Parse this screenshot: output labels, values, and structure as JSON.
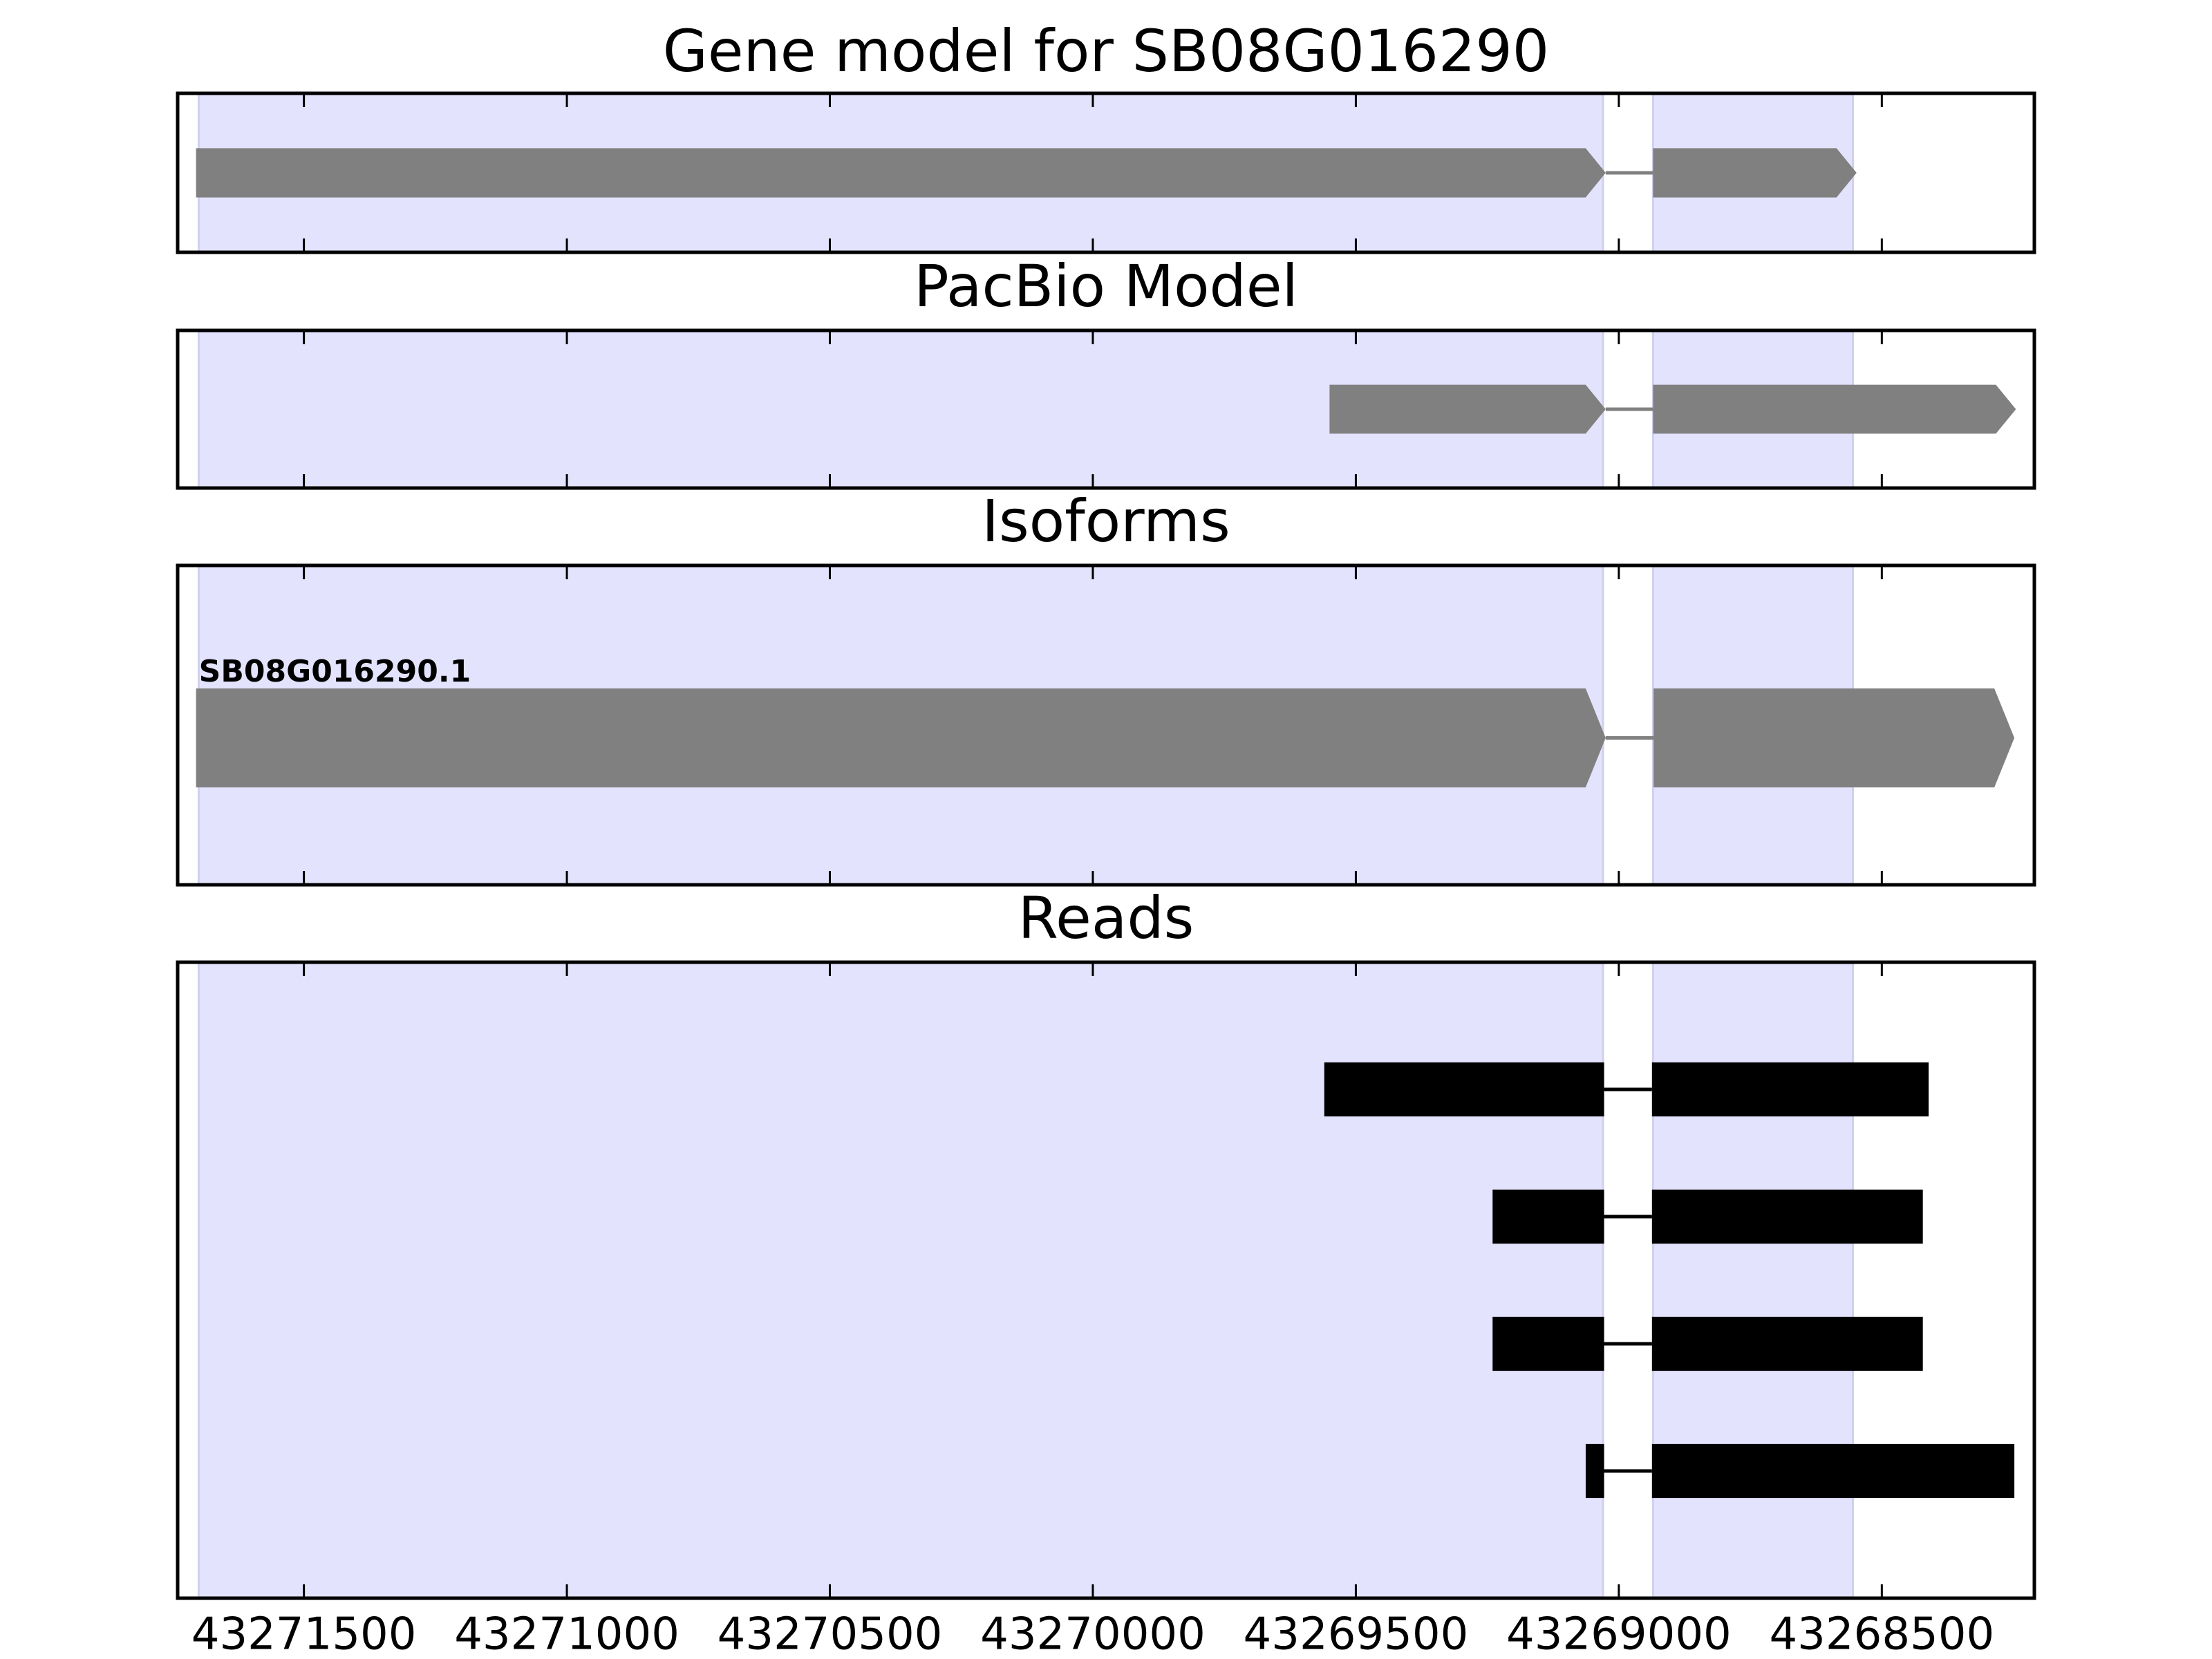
{
  "chart_data": [
    {
      "type": "gene-track",
      "title": "Gene model for SB08G016290",
      "color": "#808080",
      "arrows": true,
      "xlim": [
        43271740,
        43268210
      ],
      "xticks": [
        43271500,
        43271000,
        43270500,
        43270000,
        43269500,
        43269000,
        43268500
      ],
      "highlights": [
        [
          43271700,
          43269030
        ],
        [
          43268935,
          43268555
        ]
      ],
      "highlight_color": "#e3e3fd",
      "features": [
        {
          "exons": [
            [
              43271705,
              43269025
            ],
            [
              43268935,
              43268548
            ]
          ]
        }
      ]
    },
    {
      "type": "gene-track",
      "title": "PacBio Model",
      "color": "#808080",
      "arrows": true,
      "xlim": [
        43271740,
        43268210
      ],
      "xticks": [
        43271500,
        43271000,
        43270500,
        43270000,
        43269500,
        43269000,
        43268500
      ],
      "highlights": [
        [
          43271700,
          43269030
        ],
        [
          43268935,
          43268555
        ]
      ],
      "highlight_color": "#e3e3fd",
      "features": [
        {
          "exons": [
            [
              43269550,
              43269025
            ],
            [
              43268935,
              43268245
            ]
          ]
        }
      ]
    },
    {
      "type": "gene-track",
      "title": "Isoforms",
      "color": "#808080",
      "arrows": true,
      "xlim": [
        43271740,
        43268210
      ],
      "xticks": [
        43271500,
        43271000,
        43270500,
        43270000,
        43269500,
        43269000,
        43268500
      ],
      "highlights": [
        [
          43271700,
          43269030
        ],
        [
          43268935,
          43268555
        ]
      ],
      "highlight_color": "#e3e3fd",
      "features": [
        {
          "label": "SB08G016290.1",
          "exons": [
            [
              43271705,
              43269025
            ],
            [
              43268934,
              43268248
            ]
          ]
        }
      ]
    },
    {
      "type": "gene-track",
      "title": "Reads",
      "color": "#000000",
      "arrows": false,
      "tick_labels": true,
      "xlim": [
        43271740,
        43268210
      ],
      "xticks": [
        43271500,
        43271000,
        43270500,
        43270000,
        43269500,
        43269000,
        43268500
      ],
      "highlights": [
        [
          43271700,
          43269030
        ],
        [
          43268935,
          43268555
        ]
      ],
      "highlight_color": "#e3e3fd",
      "features": [
        {
          "exons": [
            [
              43269560,
              43269028
            ],
            [
              43268937,
              43268411
            ]
          ]
        },
        {
          "exons": [
            [
              43269240,
              43269028
            ],
            [
              43268937,
              43268422
            ]
          ]
        },
        {
          "exons": [
            [
              43269240,
              43269028
            ],
            [
              43268937,
              43268422
            ]
          ]
        },
        {
          "exons": [
            [
              43269063,
              43269028
            ],
            [
              43268937,
              43268248
            ]
          ]
        }
      ]
    }
  ]
}
